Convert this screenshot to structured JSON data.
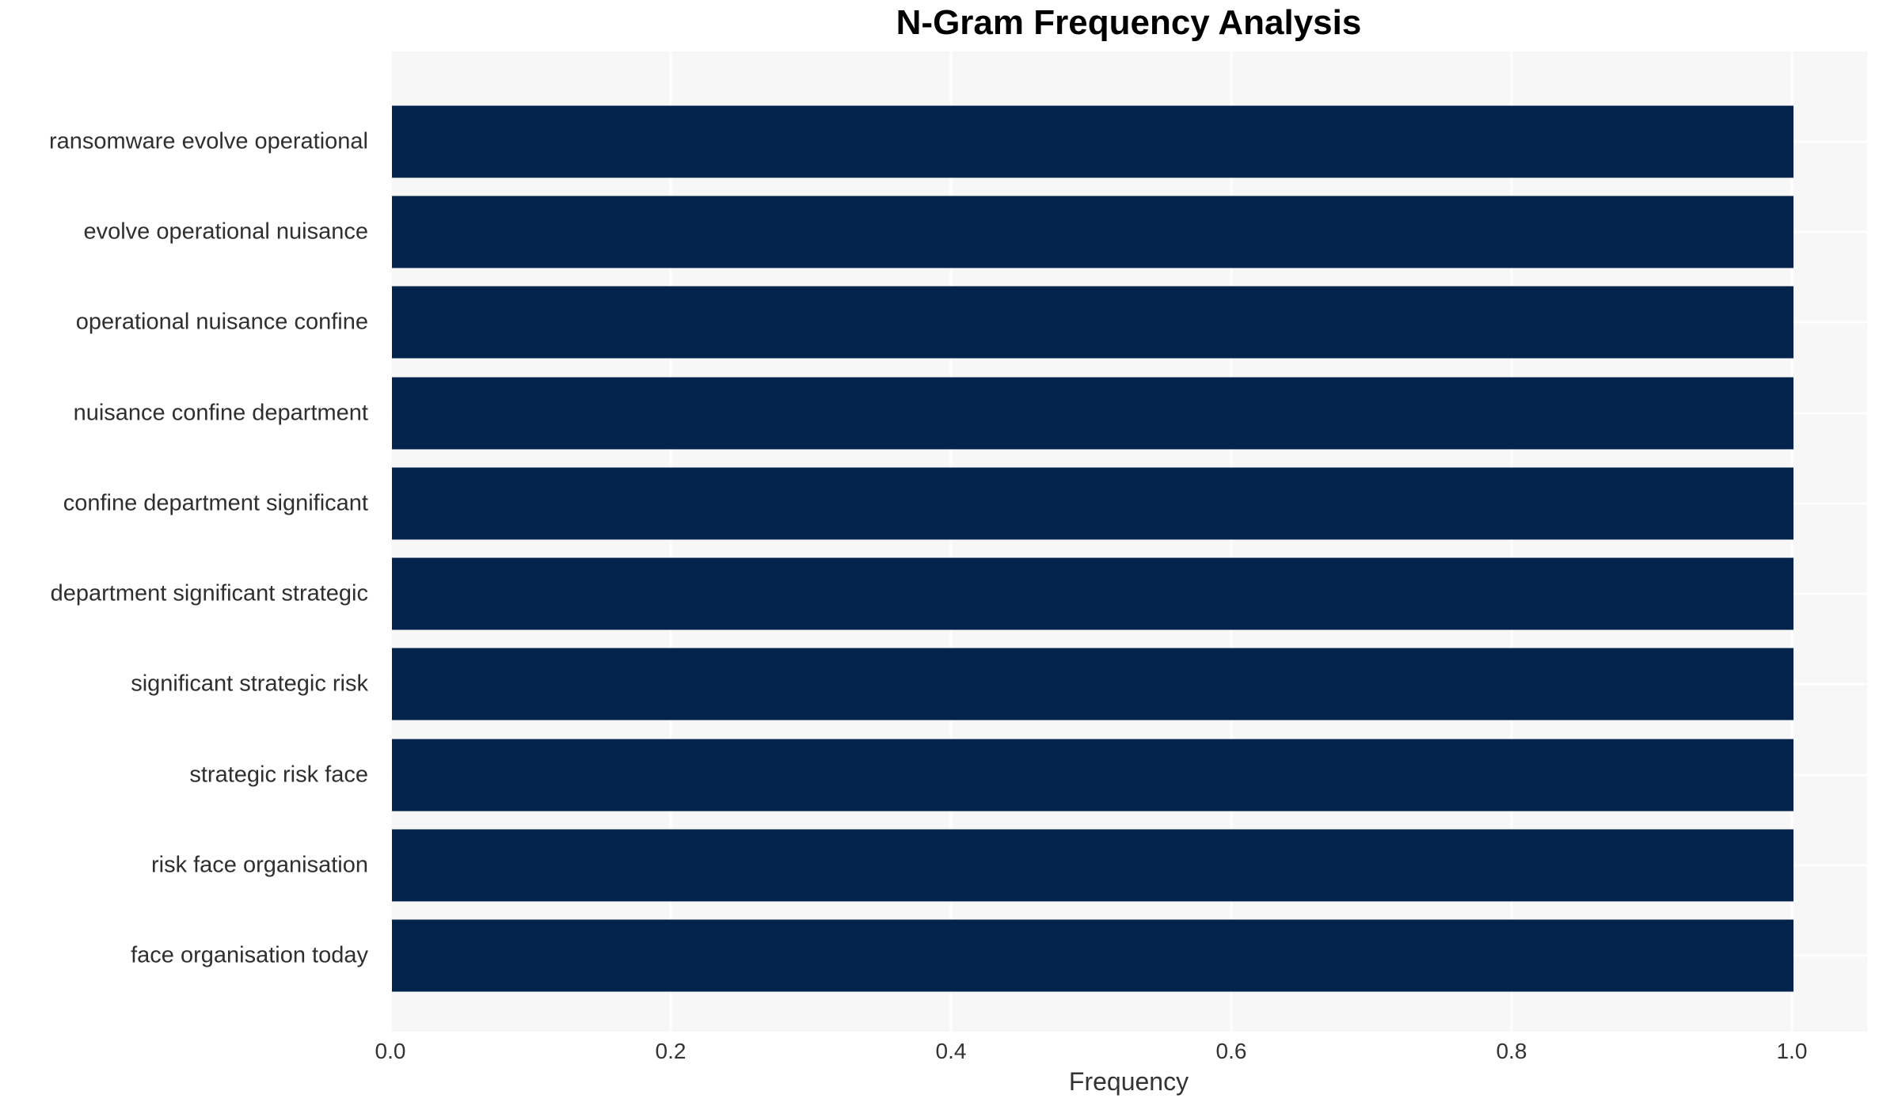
{
  "chart_data": {
    "type": "bar",
    "orientation": "horizontal",
    "title": "N-Gram Frequency Analysis",
    "xlabel": "Frequency",
    "ylabel": "",
    "categories": [
      "ransomware evolve operational",
      "evolve operational nuisance",
      "operational nuisance confine",
      "nuisance confine department",
      "confine department significant",
      "department significant strategic",
      "significant strategic risk",
      "strategic risk face",
      "risk face organisation",
      "face organisation today"
    ],
    "values": [
      1.0,
      1.0,
      1.0,
      1.0,
      1.0,
      1.0,
      1.0,
      1.0,
      1.0,
      1.0
    ],
    "xticks": [
      0.0,
      0.2,
      0.4,
      0.6,
      0.8,
      1.0
    ],
    "xtick_labels": [
      "0.0",
      "0.2",
      "0.4",
      "0.6",
      "0.8",
      "1.0"
    ],
    "xlim": [
      0,
      1.0537
    ],
    "grid": "on",
    "legend": "none",
    "colors": {
      "bar": "#03234d",
      "plot_background": "#f7f7f8",
      "figure_background": "#ffffff",
      "gridline": "#ffffff",
      "tick_label": "#333333",
      "title": "#000000"
    }
  }
}
